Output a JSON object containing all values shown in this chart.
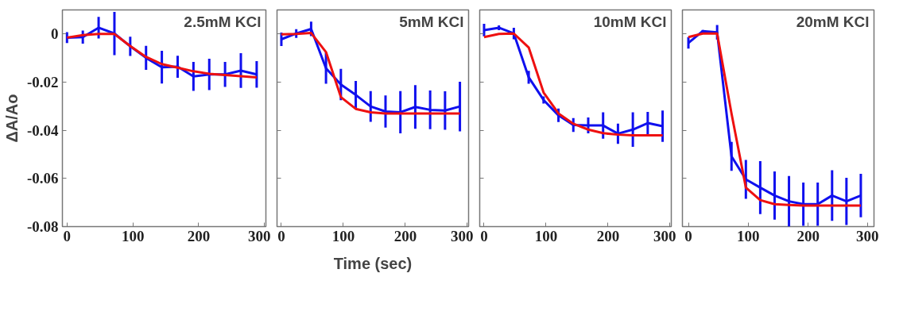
{
  "chart_data": [
    {
      "type": "line",
      "ylabel": "ΔA/Ao",
      "annotations": [
        "2.5mM KCl"
      ],
      "xlim": [
        -7,
        302
      ],
      "ylim": [
        -0.08,
        0.01
      ],
      "xticks": [
        0,
        100,
        200,
        300
      ],
      "yticks": [
        -0.08,
        -0.06,
        -0.04,
        -0.02,
        0
      ],
      "grid": false,
      "marker": "none",
      "line_style": "solid",
      "series": [
        {
          "color": "#1010ee",
          "x": [
            0,
            24,
            48,
            72,
            96,
            120,
            144,
            168,
            192,
            216,
            240,
            264,
            288
          ],
          "values": [
            -0.0015,
            -0.0013,
            0.0026,
            0.0002,
            -0.0051,
            -0.0099,
            -0.0138,
            -0.0136,
            -0.0176,
            -0.0168,
            -0.0168,
            -0.0152,
            -0.0168
          ],
          "errors": [
            0.0023,
            0.0027,
            0.0045,
            0.009,
            0.004,
            0.005,
            0.0068,
            0.0046,
            0.006,
            0.0065,
            0.0052,
            0.0072,
            0.0055
          ]
        },
        {
          "color": "#ee1010",
          "x": [
            0,
            24,
            48,
            72,
            96,
            120,
            144,
            168,
            192,
            216,
            240,
            264,
            288
          ],
          "values": [
            -0.0015,
            -0.0005,
            0,
            0,
            -0.005,
            -0.0095,
            -0.0125,
            -0.014,
            -0.0155,
            -0.0165,
            -0.017,
            -0.0175,
            -0.018
          ]
        }
      ]
    },
    {
      "type": "line",
      "xlabel": "Time (sec)",
      "annotations": [
        "5mM KCl"
      ],
      "xlim": [
        -7,
        302
      ],
      "ylim": [
        -0.08,
        0.01
      ],
      "xticks": [
        0,
        100,
        200,
        300
      ],
      "yticks": [
        -0.08,
        -0.06,
        -0.04,
        -0.02,
        0
      ],
      "tick_labels": "x",
      "grid": false,
      "marker": "none",
      "line_style": "solid",
      "series": [
        {
          "color": "#1010ee",
          "x": [
            0,
            24,
            48,
            72,
            96,
            120,
            144,
            168,
            192,
            216,
            240,
            264,
            288
          ],
          "values": [
            -0.0022,
            0.0002,
            0.0021,
            -0.0142,
            -0.021,
            -0.0253,
            -0.0301,
            -0.0322,
            -0.0325,
            -0.0303,
            -0.0315,
            -0.0318,
            -0.0301
          ],
          "errors": [
            0.0028,
            0.0018,
            0.003,
            0.0065,
            0.0065,
            0.0058,
            0.0064,
            0.0067,
            0.0088,
            0.0091,
            0.008,
            0.008,
            0.0103
          ]
        },
        {
          "color": "#ee1010",
          "x": [
            0,
            24,
            48,
            72,
            96,
            120,
            144,
            168,
            192,
            216,
            240,
            264,
            288
          ],
          "values": [
            -0.0001,
            0,
            0.0004,
            -0.0075,
            -0.0262,
            -0.0311,
            -0.0325,
            -0.033,
            -0.033,
            -0.033,
            -0.033,
            -0.033,
            -0.033
          ]
        }
      ]
    },
    {
      "type": "line",
      "annotations": [
        "10mM KCl"
      ],
      "xlim": [
        -7,
        302
      ],
      "ylim": [
        -0.08,
        0.01
      ],
      "xticks": [
        0,
        100,
        200,
        300
      ],
      "yticks": [
        -0.08,
        -0.06,
        -0.04,
        -0.02,
        0
      ],
      "tick_labels": "x",
      "grid": false,
      "marker": "none",
      "line_style": "solid",
      "series": [
        {
          "color": "#1010ee",
          "x": [
            0,
            24,
            48,
            72,
            96,
            120,
            144,
            168,
            192,
            216,
            240,
            264,
            288
          ],
          "values": [
            0.0016,
            0.0026,
            0.0002,
            -0.018,
            -0.0274,
            -0.0338,
            -0.0378,
            -0.038,
            -0.038,
            -0.0414,
            -0.0397,
            -0.037,
            -0.0383
          ],
          "errors": [
            0.0026,
            0.001,
            0.0024,
            0.0027,
            0.0015,
            0.0028,
            0.0029,
            0.0033,
            0.0055,
            0.0042,
            0.0072,
            0.0046,
            0.0065
          ]
        },
        {
          "color": "#ee1010",
          "x": [
            0,
            24,
            48,
            72,
            96,
            120,
            144,
            168,
            192,
            216,
            240,
            264,
            288
          ],
          "values": [
            -0.0013,
            0,
            0.0002,
            -0.0056,
            -0.0243,
            -0.033,
            -0.0373,
            -0.0397,
            -0.0412,
            -0.0418,
            -0.0421,
            -0.0421,
            -0.0421
          ]
        }
      ]
    },
    {
      "type": "line",
      "annotations": [
        "20mM KCl"
      ],
      "xlim": [
        -10,
        310
      ],
      "ylim": [
        -0.08,
        0.01
      ],
      "xticks": [
        0,
        100,
        200,
        300
      ],
      "yticks": [
        -0.08,
        -0.06,
        -0.04,
        -0.02,
        0
      ],
      "tick_labels": "x",
      "grid": false,
      "marker": "none",
      "line_style": "solid",
      "series": [
        {
          "color": "#1010ee",
          "x": [
            0,
            24,
            48,
            72,
            96,
            120,
            144,
            168,
            192,
            216,
            240,
            264,
            288
          ],
          "values": [
            -0.0037,
            0.0012,
            0.0007,
            -0.0508,
            -0.0604,
            -0.0638,
            -0.0671,
            -0.0695,
            -0.0707,
            -0.0707,
            -0.0671,
            -0.0695,
            -0.0671
          ],
          "errors": [
            0.0024,
            0.0005,
            0.003,
            0.006,
            0.0081,
            0.011,
            0.01,
            0.0105,
            0.009,
            0.009,
            0.0105,
            0.0098,
            0.009
          ]
        },
        {
          "color": "#ee1010",
          "x": [
            0,
            24,
            48,
            72,
            96,
            120,
            144,
            168,
            192,
            216,
            240,
            264,
            288
          ],
          "values": [
            -0.0013,
            0.0002,
            0.0002,
            -0.033,
            -0.0638,
            -0.069,
            -0.0707,
            -0.071,
            -0.0713,
            -0.0713,
            -0.0713,
            -0.0713,
            -0.0713
          ]
        }
      ]
    }
  ]
}
